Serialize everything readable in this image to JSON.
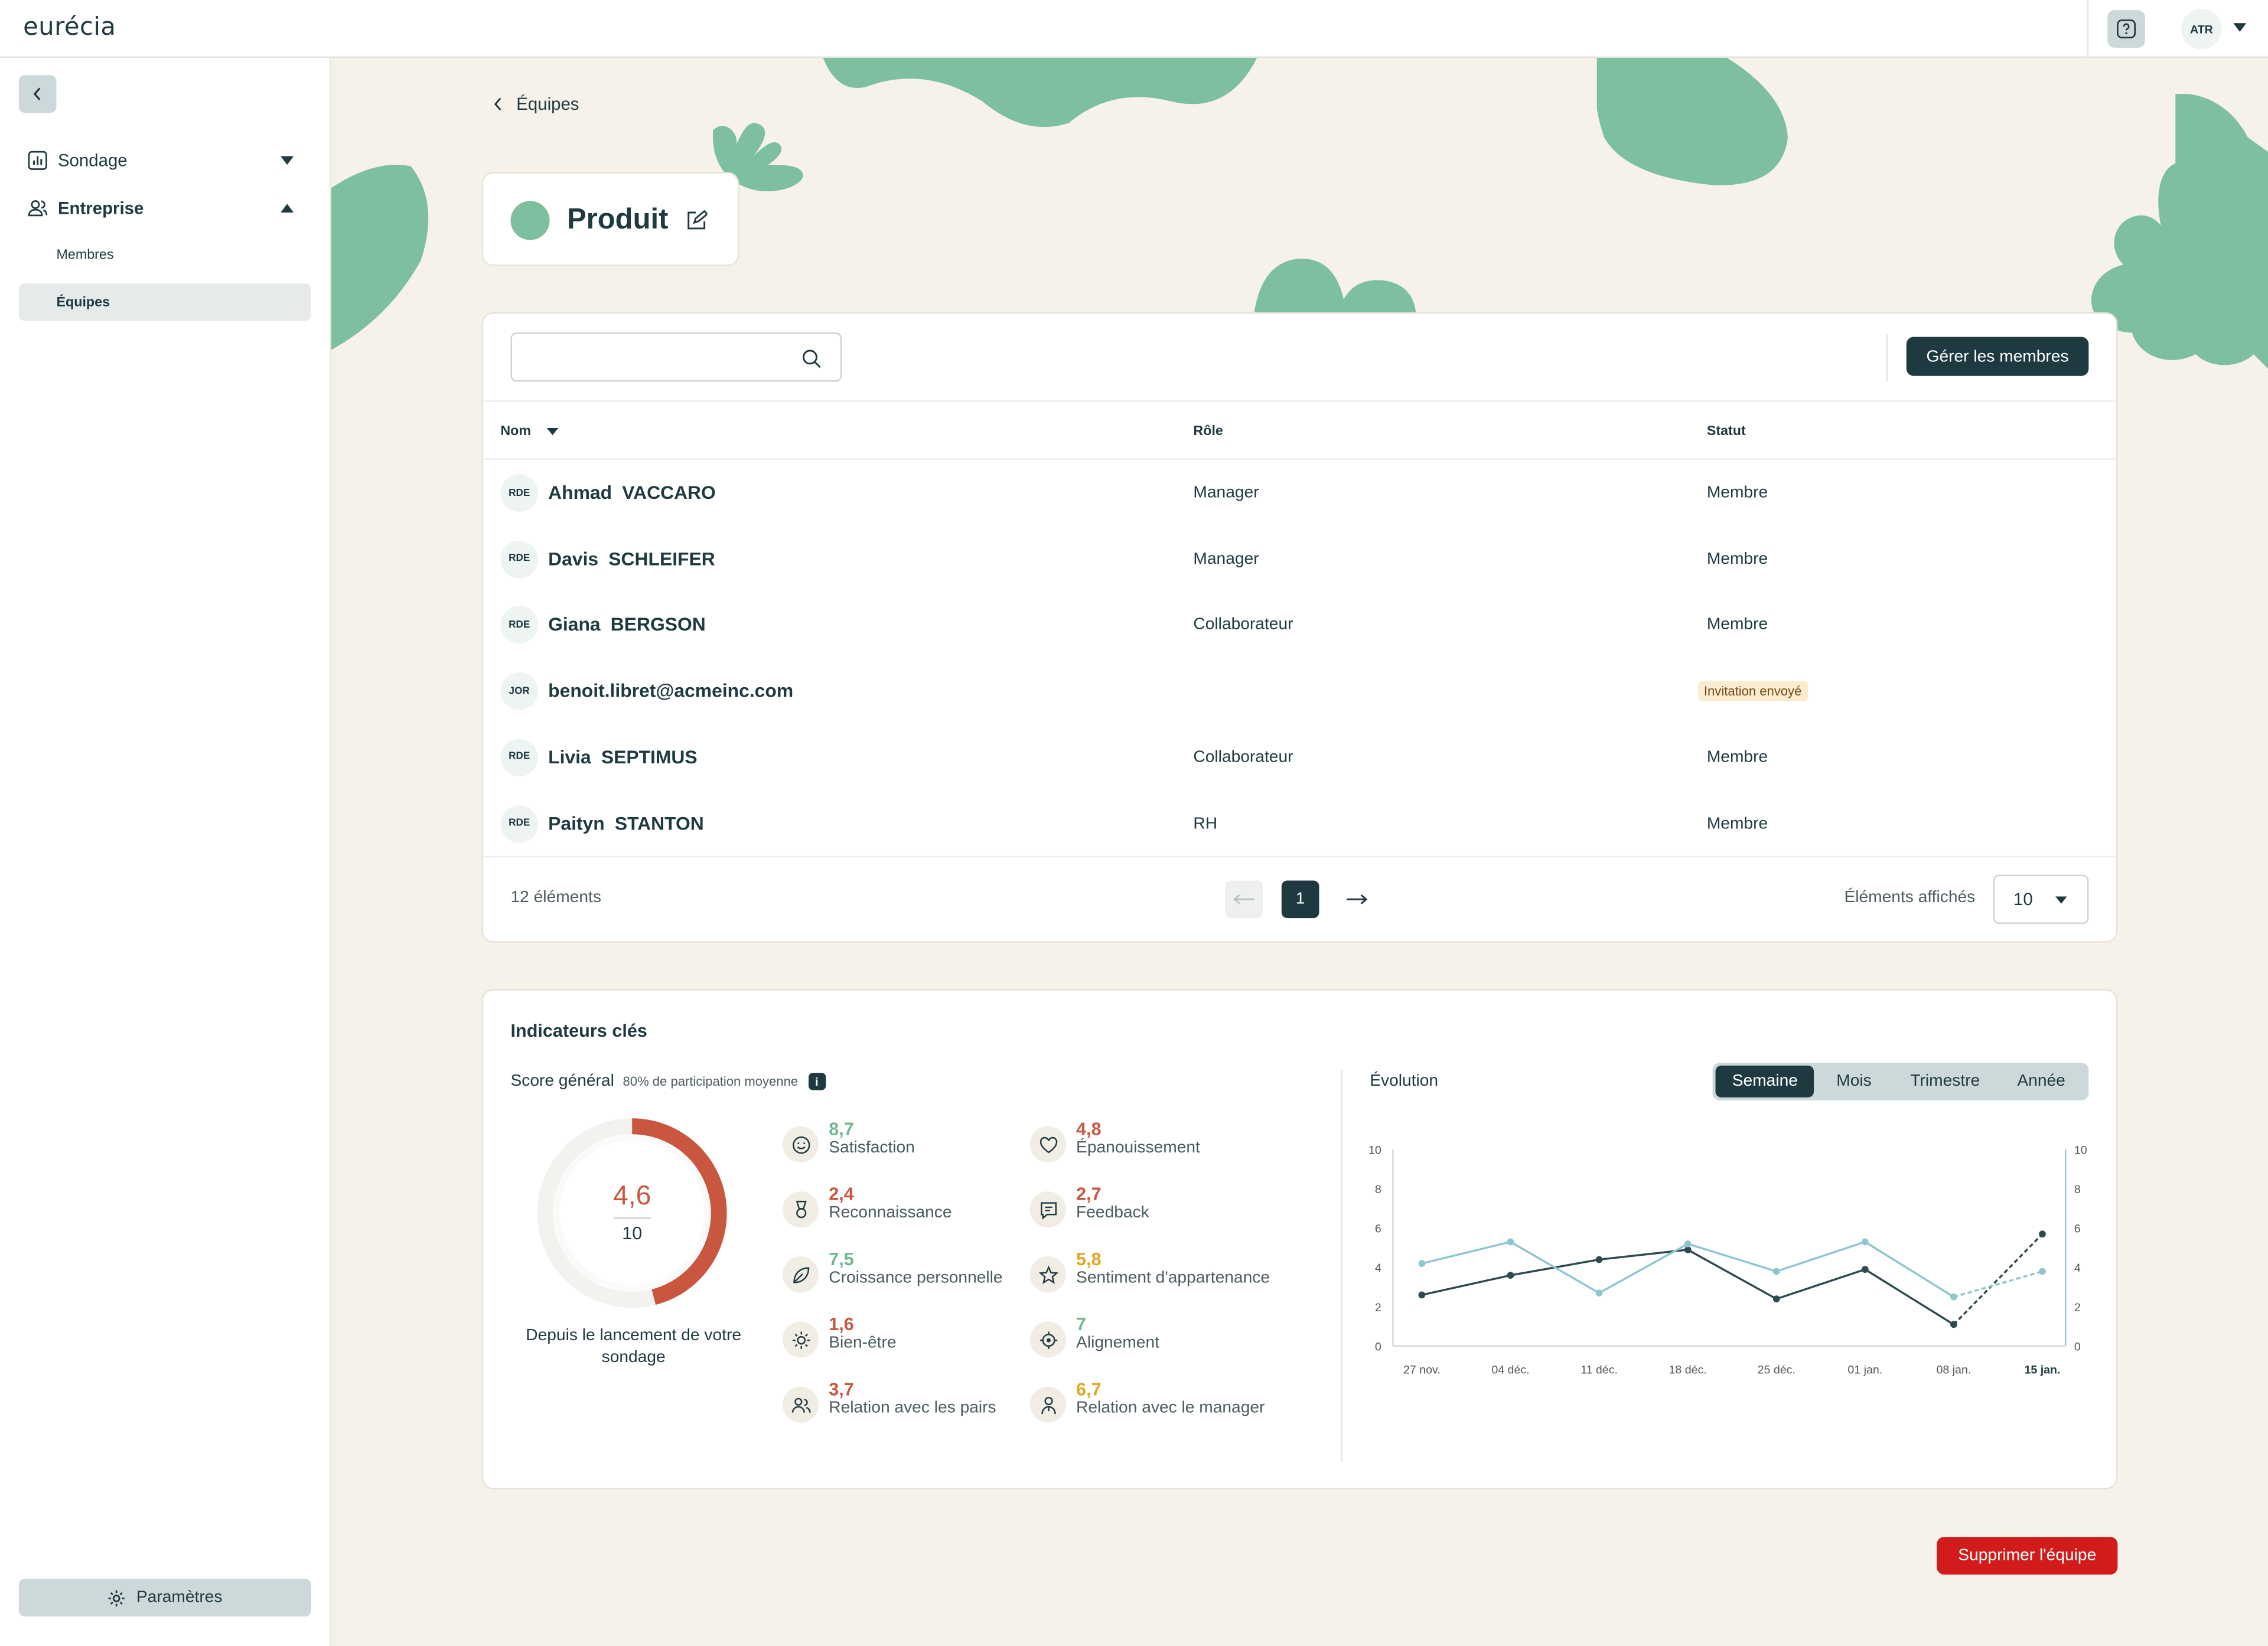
{
  "app": {
    "logo": "eurécia"
  },
  "topbar": {
    "user_initials": "ATR"
  },
  "sidebar": {
    "items": [
      {
        "label": "Sondage"
      },
      {
        "label": "Entreprise"
      }
    ],
    "subitems": [
      {
        "label": "Membres"
      },
      {
        "label": "Équipes"
      }
    ],
    "settings_label": "Paramètres"
  },
  "breadcrumb": {
    "label": "Équipes"
  },
  "team": {
    "name": "Produit",
    "color": "#7dbf9e"
  },
  "members": {
    "search_value": "",
    "manage_label": "Gérer les membres",
    "columns": [
      "Nom",
      "Rôle",
      "Statut"
    ],
    "rows": [
      {
        "initials": "RDE",
        "first": "Ahmad",
        "last": "VACCARO",
        "role": "Manager",
        "status": "Membre"
      },
      {
        "initials": "RDE",
        "first": "Davis",
        "last": "SCHLEIFER",
        "role": "Manager",
        "status": "Membre"
      },
      {
        "initials": "RDE",
        "first": "Giana",
        "last": "BERGSON",
        "role": "Collaborateur",
        "status": "Membre"
      },
      {
        "initials": "JOR",
        "first": "benoit.libret@acmeinc.com",
        "last": "",
        "role": "",
        "status": "Invitation envoyé"
      },
      {
        "initials": "RDE",
        "first": "Livia",
        "last": "SEPTIMUS",
        "role": "Collaborateur",
        "status": "Membre"
      },
      {
        "initials": "RDE",
        "first": "Paityn",
        "last": "STANTON",
        "role": "RH",
        "status": "Membre"
      }
    ],
    "count_label": "12 éléments",
    "current_page": "1",
    "page_size_label": "Éléments affichés",
    "page_size": "10"
  },
  "kpi": {
    "title": "Indicateurs clés",
    "score_label": "Score général",
    "participation": "80% de participation moyenne",
    "info_glyph": "i",
    "score": "4,6",
    "score_max": "10",
    "score_value": 4.6,
    "since": "Depuis le lancement de votre sondage",
    "metrics": [
      {
        "value": "8,7",
        "label": "Satisfaction",
        "color": "#6fb98f",
        "icon": "smile-icon"
      },
      {
        "value": "4,8",
        "label": "Épanouissement",
        "color": "#c9573f",
        "icon": "heart-icon"
      },
      {
        "value": "2,4",
        "label": "Reconnaissance",
        "color": "#c9573f",
        "icon": "medal-icon"
      },
      {
        "value": "2,7",
        "label": "Feedback",
        "color": "#c9573f",
        "icon": "message-icon"
      },
      {
        "value": "7,5",
        "label": "Croissance personnelle",
        "color": "#6fb98f",
        "icon": "leaf-icon"
      },
      {
        "value": "5,8",
        "label": "Sentiment d'appartenance",
        "color": "#e3a526",
        "icon": "star-icon"
      },
      {
        "value": "1,6",
        "label": "Bien-être",
        "color": "#c9573f",
        "icon": "sun-icon"
      },
      {
        "value": "7",
        "label": "Alignement",
        "color": "#6fb98f",
        "icon": "target-icon"
      },
      {
        "value": "3,7",
        "label": "Relation avec les pairs",
        "color": "#c9573f",
        "icon": "users-icon"
      },
      {
        "value": "6,7",
        "label": "Relation avec le manager",
        "color": "#e3a526",
        "icon": "manager-icon"
      }
    ]
  },
  "evolution": {
    "title": "Évolution",
    "tabs": [
      "Semaine",
      "Mois",
      "Trimestre",
      "Année"
    ],
    "active_tab": "Semaine"
  },
  "chart_data": {
    "type": "line",
    "categories": [
      "27 nov.",
      "04 déc.",
      "11 déc.",
      "18 déc.",
      "25 déc.",
      "01 jan.",
      "08 jan.",
      "15 jan."
    ],
    "series": [
      {
        "color": "#2e4a50",
        "values": [
          2.6,
          3.6,
          4.4,
          4.9,
          2.4,
          3.9,
          1.1,
          5.7
        ],
        "last_segment_dashed": true
      },
      {
        "color": "#8fc5cf",
        "values": [
          4.2,
          5.3,
          2.7,
          5.2,
          3.8,
          5.3,
          2.5,
          3.8
        ],
        "last_segment_dashed": true
      }
    ],
    "ylim": [
      0,
      10
    ],
    "yticks": [
      0,
      2,
      4,
      6,
      8,
      10
    ],
    "highlight_category": "15 jan.",
    "grid": false
  },
  "actions": {
    "delete_label": "Supprimer l'équipe"
  }
}
